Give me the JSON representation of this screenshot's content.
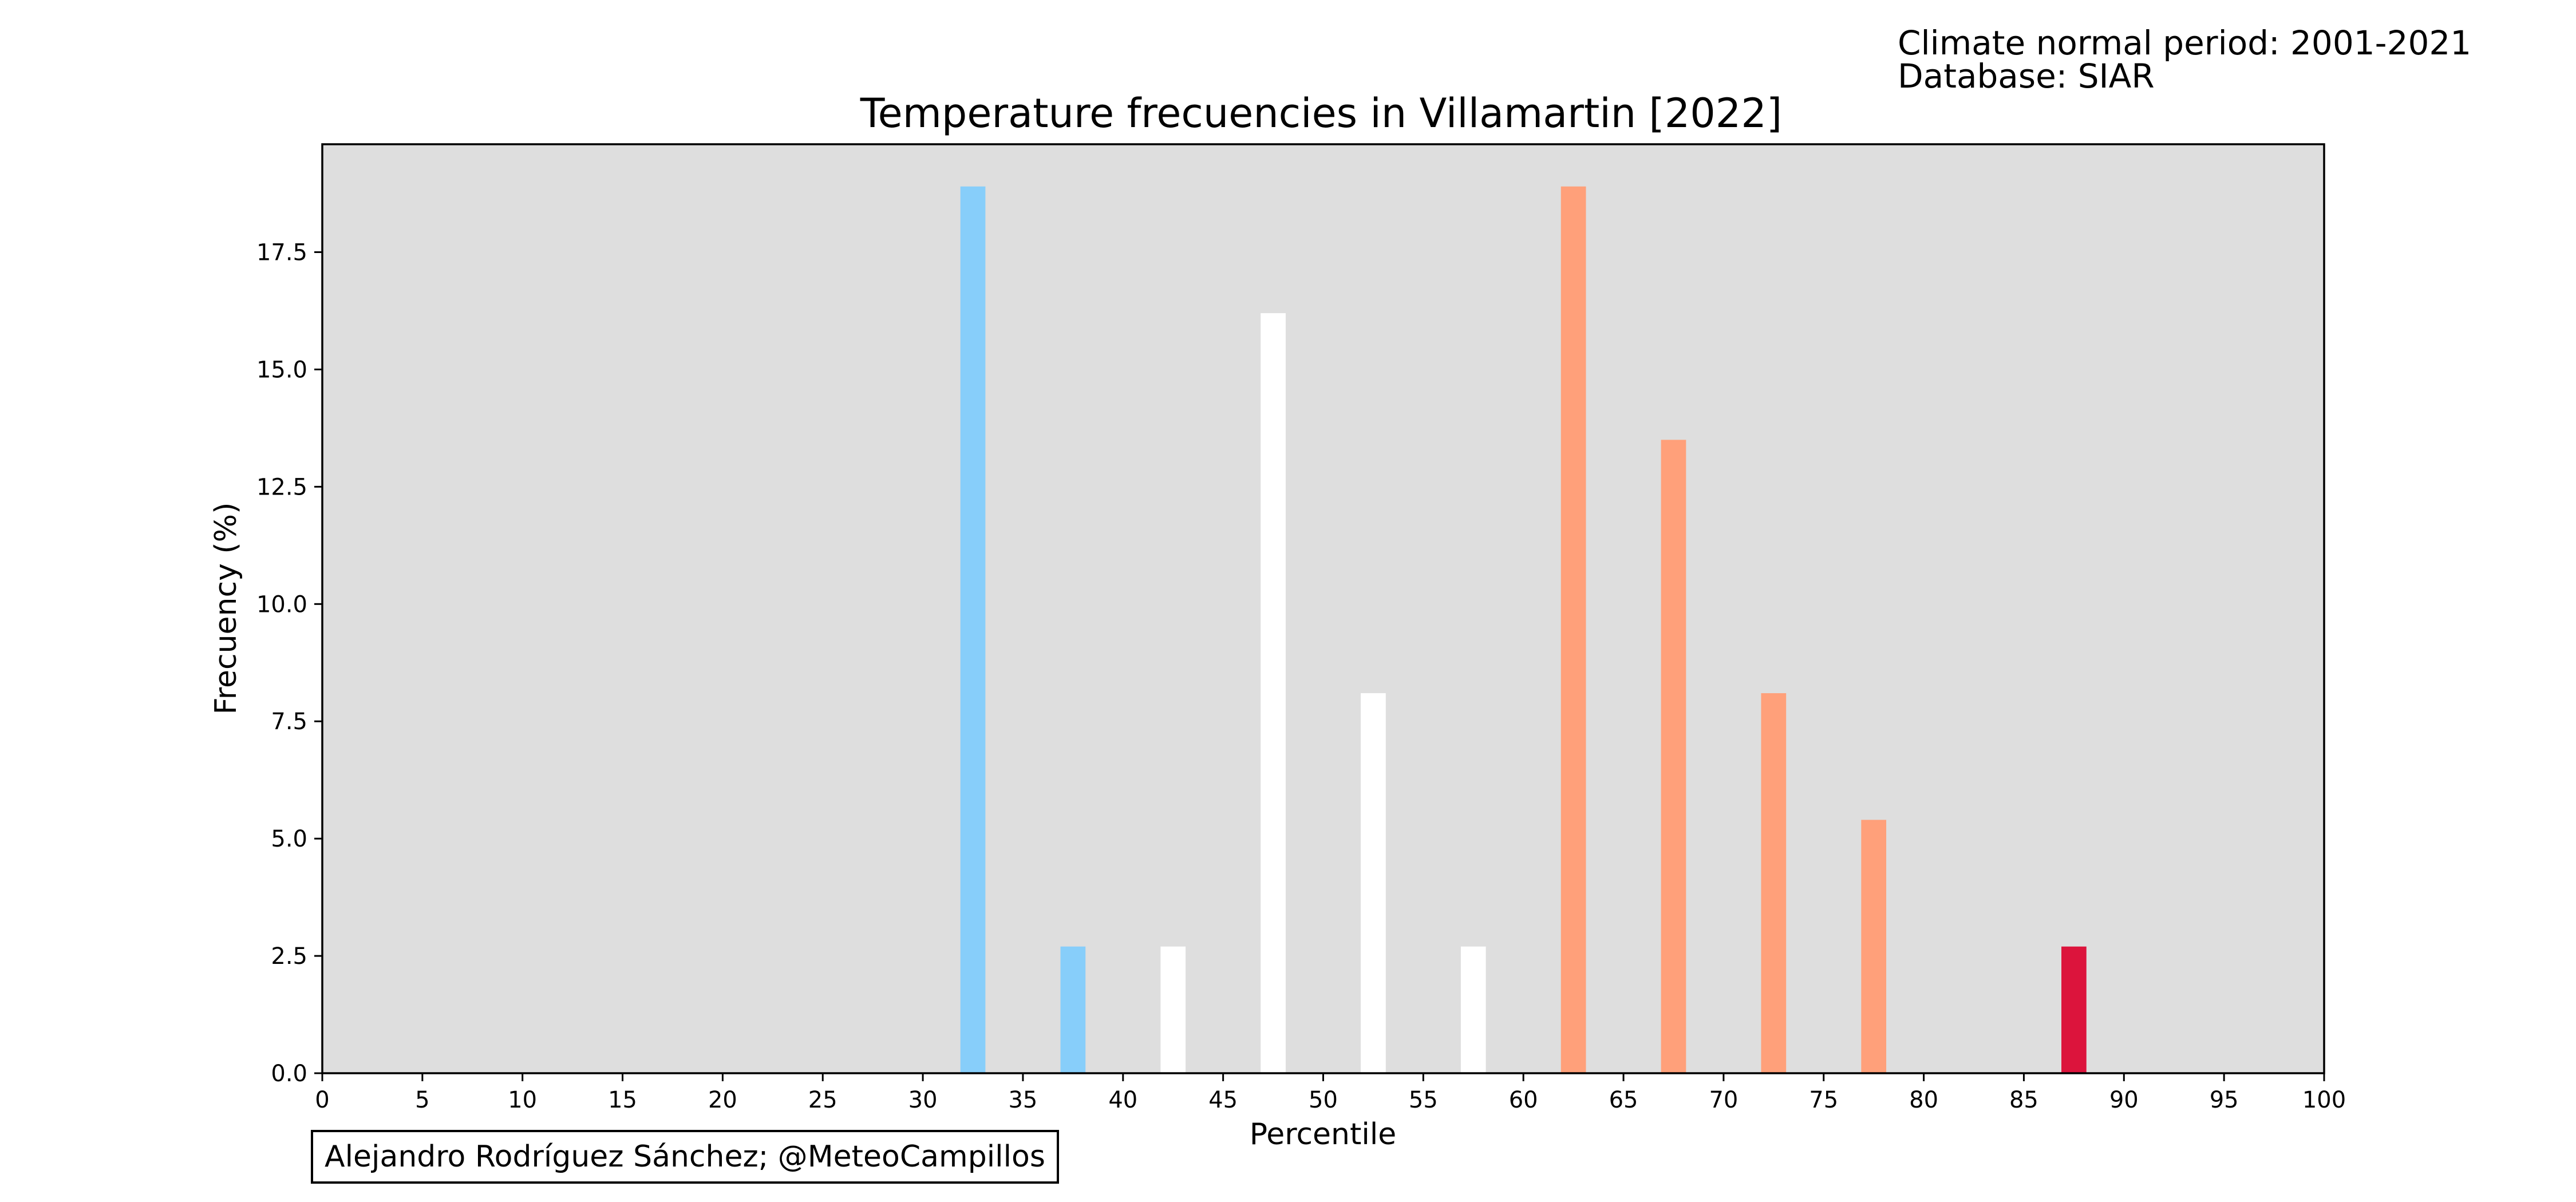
{
  "header": {
    "climate_line": "Climate normal period: 2001-2021",
    "database_line": "Database: SIAR"
  },
  "credit": "Alejandro Rodríguez Sánchez; @MeteoCampillos",
  "chart_data": {
    "type": "bar",
    "title": "Temperature frecuencies in Villamartin [2022]",
    "xlabel": "Percentile",
    "ylabel": "Frecuency (%)",
    "xlim": [
      0,
      100
    ],
    "ylim": [
      0,
      19.8
    ],
    "xticks": [
      0,
      5,
      10,
      15,
      20,
      25,
      30,
      35,
      40,
      45,
      50,
      55,
      60,
      65,
      70,
      75,
      80,
      85,
      90,
      95,
      100
    ],
    "yticks": [
      "0.0",
      "2.5",
      "5.0",
      "7.5",
      "10.0",
      "12.5",
      "15.0",
      "17.5"
    ],
    "background_color": "#dedede",
    "grid": false,
    "bar_width": 1.25,
    "bars": [
      {
        "x": 32.5,
        "value": 18.9,
        "color": "#87cefa"
      },
      {
        "x": 37.5,
        "value": 2.7,
        "color": "#87cefa"
      },
      {
        "x": 42.5,
        "value": 2.7,
        "color": "#ffffff"
      },
      {
        "x": 47.5,
        "value": 16.2,
        "color": "#ffffff"
      },
      {
        "x": 52.5,
        "value": 8.1,
        "color": "#ffffff"
      },
      {
        "x": 57.5,
        "value": 2.7,
        "color": "#ffffff"
      },
      {
        "x": 62.5,
        "value": 18.9,
        "color": "#ffa07a"
      },
      {
        "x": 67.5,
        "value": 13.5,
        "color": "#ffa07a"
      },
      {
        "x": 72.5,
        "value": 8.1,
        "color": "#ffa07a"
      },
      {
        "x": 77.5,
        "value": 5.4,
        "color": "#ffa07a"
      },
      {
        "x": 87.5,
        "value": 2.7,
        "color": "#dc143c"
      }
    ]
  }
}
